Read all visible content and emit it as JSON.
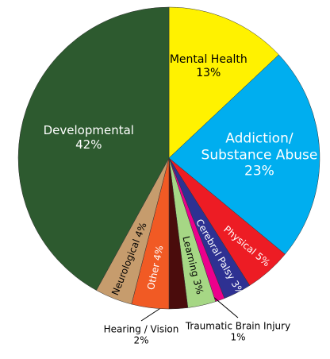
{
  "chart_data": {
    "type": "pie",
    "categories": [
      "Mental Health",
      "Addiction/ Substance Abuse",
      "Physical",
      "Cerebral Palsy",
      "Traumatic Brain Injury",
      "Learning",
      "Hearing / Vision",
      "Other",
      "Neurological",
      "Developmental"
    ],
    "values": [
      13,
      23,
      5,
      3,
      1,
      3,
      2,
      4,
      4,
      42
    ],
    "value_labels": [
      "13%",
      "23%",
      "5%",
      "3%",
      "1%",
      "3%",
      "2%",
      "4%",
      "4%",
      "42%"
    ],
    "colors": [
      "#fff200",
      "#00aeef",
      "#ed1c24",
      "#2e3192",
      "#ec008c",
      "#a6d785",
      "#4a0c0c",
      "#f15a24",
      "#c69c6d",
      "#2d5a2f"
    ]
  }
}
